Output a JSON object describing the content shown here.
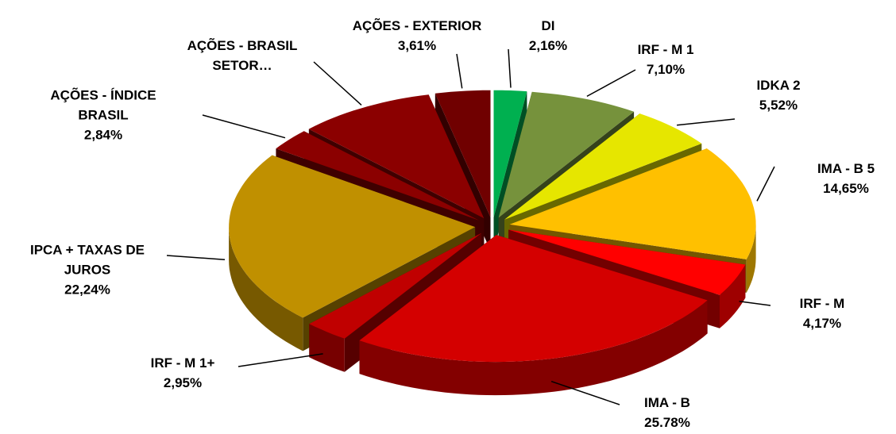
{
  "chart_data": {
    "type": "pie",
    "categories": [
      "DI",
      "IRF - M 1",
      "IDKA 2",
      "IMA - B 5",
      "IRF - M",
      "IMA - B",
      "IRF - M 1+",
      "IPCA + TAXAS DE JUROS",
      "AÇÕES - ÍNDICE BRASIL",
      "AÇÕES - BRASIL SETOR…",
      "AÇÕES - EXTERIOR"
    ],
    "values": [
      2.16,
      7.1,
      5.52,
      14.65,
      4.17,
      25.78,
      2.95,
      22.24,
      2.84,
      8.98,
      3.61
    ],
    "value_labels": [
      "2,16%",
      "7,10%",
      "5,52%",
      "14,65%",
      "4,17%",
      "25.78%",
      "2,95%",
      "22,24%",
      "2,84%",
      null,
      "3,61%"
    ],
    "colors": [
      "#00b050",
      "#76923c",
      "#e6e600",
      "#ffc000",
      "#ff0000",
      "#d40000",
      "#c00000",
      "#c09000",
      "#8b0000",
      "#8b0000",
      "#700000"
    ]
  }
}
